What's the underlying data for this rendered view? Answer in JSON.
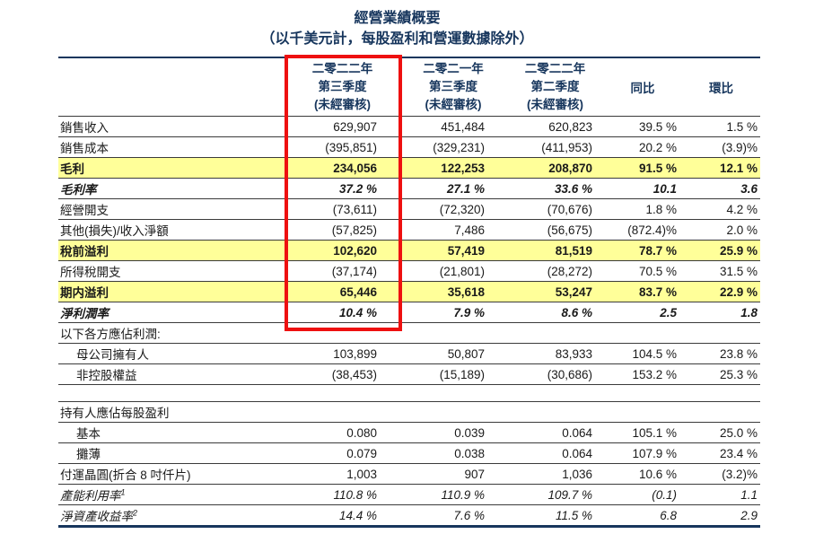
{
  "page": {
    "title": "經營業績概要",
    "subtitle": "（以千美元計，每股盈利和營運數據除外）"
  },
  "colors": {
    "heading_navy": "#17365d",
    "row_highlight_yellow": "#ffff99",
    "annotation_red": "#ee1010"
  },
  "annotations": {
    "highlight_box": {
      "shape": "rectangle",
      "color": "#ee1010",
      "target": "二零二二年第三季度 column"
    }
  },
  "table": {
    "header": {
      "col1": [
        "二零二二年",
        "第三季度",
        "(未經審核)"
      ],
      "col2": [
        "二零二一年",
        "第三季度",
        "(未經審核)"
      ],
      "col3": [
        "二零二二年",
        "第二季度",
        "(未經審核)"
      ],
      "col4": "同比",
      "col5": "環比"
    },
    "rows": [
      {
        "label": "銷售收入",
        "sup": "",
        "cells": [
          "629,907",
          "451,484",
          "620,823",
          "39.5 %",
          "1.5 %"
        ],
        "style": "normal",
        "indent": false
      },
      {
        "label": "銷售成本",
        "sup": "",
        "cells": [
          "(395,851)",
          "(329,231)",
          "(411,953)",
          "20.2 %",
          "(3.9)%"
        ],
        "style": "normal",
        "indent": false
      },
      {
        "label": "毛利",
        "sup": "",
        "cells": [
          "234,056",
          "122,253",
          "208,870",
          "91.5 %",
          "12.1 %"
        ],
        "style": "bold-yellow",
        "indent": false
      },
      {
        "label": "毛利率",
        "sup": "",
        "cells": [
          "37.2 %",
          "27.1 %",
          "33.6 %",
          "10.1",
          "3.6"
        ],
        "style": "bold-italic",
        "indent": false
      },
      {
        "label": "經營開支",
        "sup": "",
        "cells": [
          "(73,611)",
          "(72,320)",
          "(70,676)",
          "1.8 %",
          "4.2 %"
        ],
        "style": "normal",
        "indent": false
      },
      {
        "label": "其他(損失)/收入淨額",
        "sup": "",
        "cells": [
          "(57,825)",
          "7,486",
          "(56,675)",
          "(872.4)%",
          "2.0 %"
        ],
        "style": "normal",
        "indent": false
      },
      {
        "label": "稅前溢利",
        "sup": "",
        "cells": [
          "102,620",
          "57,419",
          "81,519",
          "78.7 %",
          "25.9 %"
        ],
        "style": "bold-yellow",
        "indent": false
      },
      {
        "label": "所得稅開支",
        "sup": "",
        "cells": [
          "(37,174)",
          "(21,801)",
          "(28,272)",
          "70.5 %",
          "31.5 %"
        ],
        "style": "normal",
        "indent": false
      },
      {
        "label": "期内溢利",
        "sup": "",
        "cells": [
          "65,446",
          "35,618",
          "53,247",
          "83.7 %",
          "22.9 %"
        ],
        "style": "bold-yellow",
        "indent": false
      },
      {
        "label": "淨利潤率",
        "sup": "",
        "cells": [
          "10.4 %",
          "7.9 %",
          "8.6 %",
          "2.5",
          "1.8"
        ],
        "style": "bold-italic",
        "indent": false
      },
      {
        "label": "以下各方應佔利潤:",
        "sup": "",
        "cells": [
          "",
          "",
          "",
          "",
          ""
        ],
        "style": "section",
        "indent": false
      },
      {
        "label": "母公司擁有人",
        "sup": "",
        "cells": [
          "103,899",
          "50,807",
          "83,933",
          "104.5 %",
          "23.8 %"
        ],
        "style": "normal",
        "indent": true
      },
      {
        "label": "非控股權益",
        "sup": "",
        "cells": [
          "(38,453)",
          "(15,189)",
          "(30,686)",
          "153.2 %",
          "25.3 %"
        ],
        "style": "normal",
        "indent": true
      },
      {
        "label": "",
        "sup": "",
        "cells": [
          "",
          "",
          "",
          "",
          ""
        ],
        "style": "spacer",
        "indent": false
      },
      {
        "label": "持有人應佔每股盈利",
        "sup": "",
        "cells": [
          "",
          "",
          "",
          "",
          ""
        ],
        "style": "section",
        "indent": false
      },
      {
        "label": "基本",
        "sup": "",
        "cells": [
          "0.080",
          "0.039",
          "0.064",
          "105.1 %",
          "25.0 %"
        ],
        "style": "normal",
        "indent": true
      },
      {
        "label": "攤薄",
        "sup": "",
        "cells": [
          "0.079",
          "0.038",
          "0.064",
          "107.9 %",
          "23.4 %"
        ],
        "style": "normal",
        "indent": true
      },
      {
        "label": "付運晶圓(折合 8 吋仟片)",
        "sup": "",
        "cells": [
          "1,003",
          "907",
          "1,036",
          "10.6 %",
          "(3.2)%"
        ],
        "style": "normal",
        "indent": false
      },
      {
        "label": "產能利用率",
        "sup": "1",
        "cells": [
          "110.8 %",
          "110.9 %",
          "109.7 %",
          "(0.1)",
          "1.1"
        ],
        "style": "italic",
        "indent": false
      },
      {
        "label": "淨資產收益率",
        "sup": "2",
        "cells": [
          "14.4 %",
          "7.6 %",
          "11.5 %",
          "6.8",
          "2.9"
        ],
        "style": "italic",
        "indent": false
      }
    ]
  }
}
